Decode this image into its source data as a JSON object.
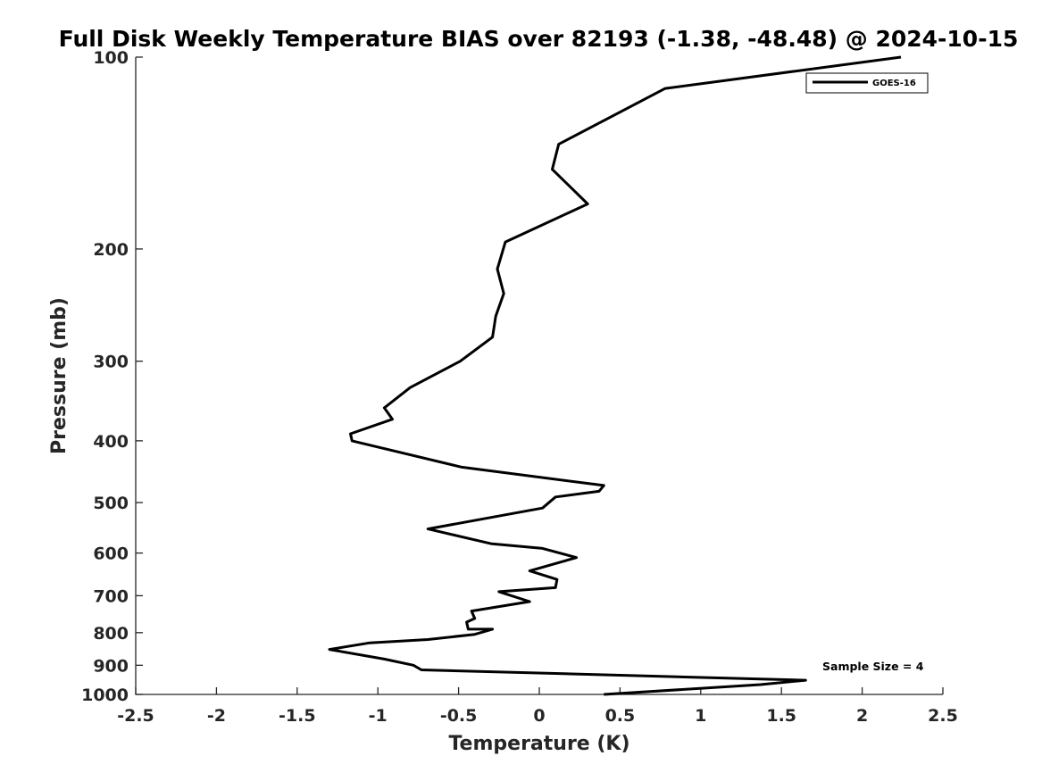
{
  "chart_data": {
    "type": "line",
    "title": "Full Disk Weekly Temperature BIAS over 82193 (-1.38, -48.48) @ 2024-10-15",
    "xlabel": "Temperature (K)",
    "ylabel": "Pressure (mb)",
    "xlim": [
      -2.5,
      2.5
    ],
    "ylim": [
      100,
      1000
    ],
    "yscale": "log",
    "y_reversed": true,
    "x_ticks": [
      -2.5,
      -2,
      -1.5,
      -1,
      -0.5,
      0,
      0.5,
      1,
      1.5,
      2,
      2.5
    ],
    "x_tick_labels": [
      "-2.5",
      "-2",
      "-1.5",
      "-1",
      "-0.5",
      "0",
      "0.5",
      "1",
      "1.5",
      "2",
      "2.5"
    ],
    "y_ticks": [
      100,
      200,
      300,
      400,
      500,
      600,
      700,
      800,
      900,
      1000
    ],
    "y_tick_labels": [
      "100",
      "200",
      "300",
      "400",
      "500",
      "600",
      "700",
      "800",
      "900",
      "1000"
    ],
    "legend": {
      "position": "top-right",
      "entries": [
        "GOES-16"
      ]
    },
    "annotation": "Sample Size = 4",
    "series": [
      {
        "name": "GOES-16",
        "color": "#000000",
        "x": [
          2.24,
          0.78,
          0.12,
          0.08,
          0.3,
          -0.21,
          -0.26,
          -0.22,
          -0.27,
          -0.29,
          -0.49,
          -0.8,
          -0.96,
          -0.91,
          -1.17,
          -1.16,
          -0.48,
          0.4,
          0.37,
          0.1,
          0.02,
          -0.69,
          -0.3,
          0.02,
          0.23,
          -0.06,
          0.11,
          0.1,
          -0.25,
          -0.06,
          -0.42,
          -0.4,
          -0.45,
          -0.44,
          -0.29,
          -0.4,
          -0.69,
          -1.05,
          -1.3,
          -0.96,
          -0.78,
          -0.73,
          1.65,
          1.37,
          0.4
        ],
        "y": [
          100,
          112,
          137,
          150,
          170,
          195,
          215,
          235,
          255,
          275,
          300,
          330,
          355,
          370,
          390,
          400,
          440,
          470,
          480,
          490,
          510,
          550,
          580,
          590,
          610,
          640,
          660,
          680,
          690,
          715,
          740,
          760,
          770,
          790,
          790,
          805,
          820,
          830,
          850,
          880,
          900,
          915,
          950,
          965,
          1000
        ]
      }
    ]
  }
}
